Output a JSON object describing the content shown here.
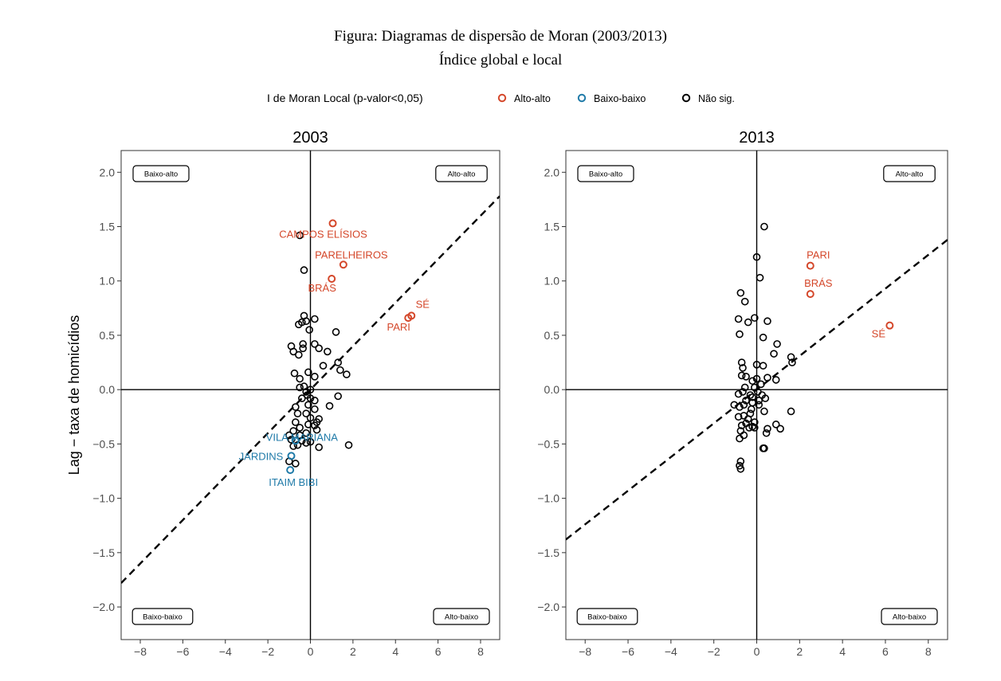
{
  "figure": {
    "title": "Figura: Diagramas de dispersão de Moran (2003/2013)",
    "subtitle": "Índice global e local"
  },
  "legend": {
    "title": "I de Moran Local (p-valor<0,05)",
    "placement": "top-center",
    "items": [
      {
        "label": "Alto-alto",
        "color": "#d4472a"
      },
      {
        "label": "Baixo-baixo",
        "color": "#1f7aa8"
      },
      {
        "label": "Não sig.",
        "color": "#000000"
      }
    ]
  },
  "chart_data": [
    {
      "type": "scatter",
      "title": "2003",
      "ylabel": "Lag − taxa de homicídios",
      "xlim": [
        -8.9,
        8.9
      ],
      "ylim": [
        -2.3,
        2.2
      ],
      "xticks": [
        "−8",
        "−6",
        "−4",
        "−2",
        "0",
        "2",
        "4",
        "6",
        "8"
      ],
      "yticks": [
        "2.0",
        "1.5",
        "1.0",
        "0.5",
        "0.0",
        "−0.5",
        "−1.0",
        "−1.5",
        "−2.0"
      ],
      "regression_slope": 0.2,
      "quadrant_labels": {
        "top_left": "Baixo-alto",
        "top_right": "Alto-alto",
        "bottom_left": "Baixo-baixo",
        "bottom_right": "Alto-baixo"
      },
      "significant": [
        {
          "x": 1.05,
          "y": 1.53,
          "group": "Alto-alto",
          "label": "CAMPOS ELÍSIOS"
        },
        {
          "x": 1.55,
          "y": 1.15,
          "group": "Alto-alto",
          "label": "PARELHEIROS"
        },
        {
          "x": 1.0,
          "y": 1.02,
          "group": "Alto-alto",
          "label": "BRÁS"
        },
        {
          "x": 4.75,
          "y": 0.68,
          "group": "Alto-alto",
          "label": "SÉ"
        },
        {
          "x": 4.6,
          "y": 0.66,
          "group": "Alto-alto",
          "label": "PARI"
        },
        {
          "x": -0.7,
          "y": -0.47,
          "group": "Baixo-baixo",
          "label": "VILA MARIANA"
        },
        {
          "x": -0.9,
          "y": -0.61,
          "group": "Baixo-baixo",
          "label": "JARDINS"
        },
        {
          "x": -0.95,
          "y": -0.74,
          "group": "Baixo-baixo",
          "label": "ITAIM BIBI"
        }
      ],
      "not_significant": [
        [
          -0.5,
          1.42
        ],
        [
          -0.3,
          1.1
        ],
        [
          -0.3,
          0.68
        ],
        [
          -0.4,
          0.62
        ],
        [
          -0.55,
          0.6
        ],
        [
          -0.2,
          0.63
        ],
        [
          0.2,
          0.65
        ],
        [
          -0.05,
          0.55
        ],
        [
          1.2,
          0.53
        ],
        [
          -0.35,
          0.42
        ],
        [
          -0.35,
          0.38
        ],
        [
          -0.9,
          0.4
        ],
        [
          -0.8,
          0.35
        ],
        [
          -0.55,
          0.32
        ],
        [
          0.2,
          0.42
        ],
        [
          0.4,
          0.38
        ],
        [
          0.8,
          0.35
        ],
        [
          1.3,
          0.25
        ],
        [
          1.4,
          0.18
        ],
        [
          1.7,
          0.14
        ],
        [
          0.6,
          0.22
        ],
        [
          -0.1,
          0.16
        ],
        [
          0.2,
          0.12
        ],
        [
          -0.75,
          0.15
        ],
        [
          -0.5,
          0.1
        ],
        [
          -0.5,
          0.02
        ],
        [
          -0.3,
          0.03
        ],
        [
          0.0,
          0.0
        ],
        [
          -0.2,
          -0.02
        ],
        [
          -0.4,
          -0.08
        ],
        [
          0.0,
          -0.08
        ],
        [
          0.2,
          -0.1
        ],
        [
          -0.1,
          -0.14
        ],
        [
          0.9,
          -0.15
        ],
        [
          1.3,
          -0.06
        ],
        [
          0.2,
          -0.18
        ],
        [
          -0.7,
          -0.16
        ],
        [
          -0.2,
          -0.22
        ],
        [
          0.0,
          -0.26
        ],
        [
          0.4,
          -0.27
        ],
        [
          -0.6,
          -0.22
        ],
        [
          -0.7,
          -0.3
        ],
        [
          -0.1,
          -0.32
        ],
        [
          0.2,
          -0.33
        ],
        [
          -0.5,
          -0.35
        ],
        [
          0.3,
          -0.37
        ],
        [
          -0.8,
          -0.38
        ],
        [
          -0.2,
          -0.4
        ],
        [
          -1.0,
          -0.42
        ],
        [
          -0.5,
          -0.42
        ],
        [
          -0.9,
          -0.46
        ],
        [
          -0.4,
          -0.47
        ],
        [
          -0.2,
          -0.49
        ],
        [
          0.0,
          -0.48
        ],
        [
          -0.6,
          -0.51
        ],
        [
          -0.8,
          -0.52
        ],
        [
          0.4,
          -0.53
        ],
        [
          1.8,
          -0.51
        ],
        [
          -0.7,
          -0.68
        ],
        [
          -1.0,
          -0.66
        ],
        [
          0.3,
          -0.3
        ],
        [
          -0.15,
          -0.05
        ]
      ]
    },
    {
      "type": "scatter",
      "title": "2013",
      "ylabel": "",
      "xlim": [
        -8.9,
        8.9
      ],
      "ylim": [
        -2.3,
        2.2
      ],
      "xticks": [
        "−8",
        "−6",
        "−4",
        "−2",
        "0",
        "2",
        "4",
        "6",
        "8"
      ],
      "yticks": [
        "2.0",
        "1.5",
        "1.0",
        "0.5",
        "0.0",
        "−0.5",
        "−1.0",
        "−1.5",
        "−2.0"
      ],
      "regression_slope": 0.155,
      "quadrant_labels": {
        "top_left": "Baixo-alto",
        "top_right": "Alto-alto",
        "bottom_left": "Baixo-baixo",
        "bottom_right": "Alto-baixo"
      },
      "significant": [
        {
          "x": 2.5,
          "y": 1.14,
          "group": "Alto-alto",
          "label": "PARI"
        },
        {
          "x": 2.5,
          "y": 0.88,
          "group": "Alto-alto",
          "label": "BRÁS"
        },
        {
          "x": 6.2,
          "y": 0.59,
          "group": "Alto-alto",
          "label": "SÉ"
        }
      ],
      "not_significant": [
        [
          0.35,
          1.5
        ],
        [
          0.0,
          1.22
        ],
        [
          0.15,
          1.03
        ],
        [
          -0.75,
          0.89
        ],
        [
          -0.55,
          0.81
        ],
        [
          -0.85,
          0.65
        ],
        [
          -0.4,
          0.62
        ],
        [
          -0.1,
          0.66
        ],
        [
          0.5,
          0.63
        ],
        [
          -0.8,
          0.51
        ],
        [
          0.3,
          0.48
        ],
        [
          0.95,
          0.42
        ],
        [
          0.8,
          0.33
        ],
        [
          1.6,
          0.3
        ],
        [
          1.65,
          0.25
        ],
        [
          -0.7,
          0.25
        ],
        [
          -0.65,
          0.2
        ],
        [
          0.0,
          0.23
        ],
        [
          0.3,
          0.22
        ],
        [
          -0.7,
          0.13
        ],
        [
          -0.5,
          0.12
        ],
        [
          0.5,
          0.11
        ],
        [
          0.9,
          0.09
        ],
        [
          -0.2,
          0.08
        ],
        [
          0.0,
          0.1
        ],
        [
          0.2,
          0.05
        ],
        [
          -0.1,
          0.02
        ],
        [
          -0.55,
          0.02
        ],
        [
          -0.65,
          -0.02
        ],
        [
          0.05,
          -0.02
        ],
        [
          -0.85,
          -0.04
        ],
        [
          -0.3,
          -0.05
        ],
        [
          -0.2,
          -0.07
        ],
        [
          0.4,
          -0.08
        ],
        [
          0.1,
          -0.1
        ],
        [
          -0.5,
          -0.1
        ],
        [
          -0.2,
          -0.12
        ],
        [
          0.1,
          -0.14
        ],
        [
          -0.6,
          -0.14
        ],
        [
          -1.05,
          -0.14
        ],
        [
          -0.8,
          -0.16
        ],
        [
          -0.25,
          -0.18
        ],
        [
          0.35,
          -0.2
        ],
        [
          1.6,
          -0.2
        ],
        [
          -0.3,
          -0.22
        ],
        [
          -0.6,
          -0.24
        ],
        [
          -0.85,
          -0.25
        ],
        [
          -0.4,
          -0.27
        ],
        [
          -0.1,
          -0.3
        ],
        [
          -0.5,
          -0.31
        ],
        [
          0.9,
          -0.32
        ],
        [
          -0.7,
          -0.33
        ],
        [
          -0.35,
          -0.35
        ],
        [
          -0.1,
          -0.35
        ],
        [
          0.5,
          -0.36
        ],
        [
          1.1,
          -0.36
        ],
        [
          -0.75,
          -0.38
        ],
        [
          0.45,
          -0.4
        ],
        [
          -0.6,
          -0.42
        ],
        [
          -0.8,
          -0.45
        ],
        [
          0.3,
          -0.54
        ],
        [
          0.35,
          -0.54
        ],
        [
          -0.75,
          -0.66
        ],
        [
          -0.8,
          -0.7
        ],
        [
          -0.75,
          -0.73
        ],
        [
          -0.2,
          -0.34
        ],
        [
          0.25,
          -0.05
        ]
      ]
    }
  ]
}
